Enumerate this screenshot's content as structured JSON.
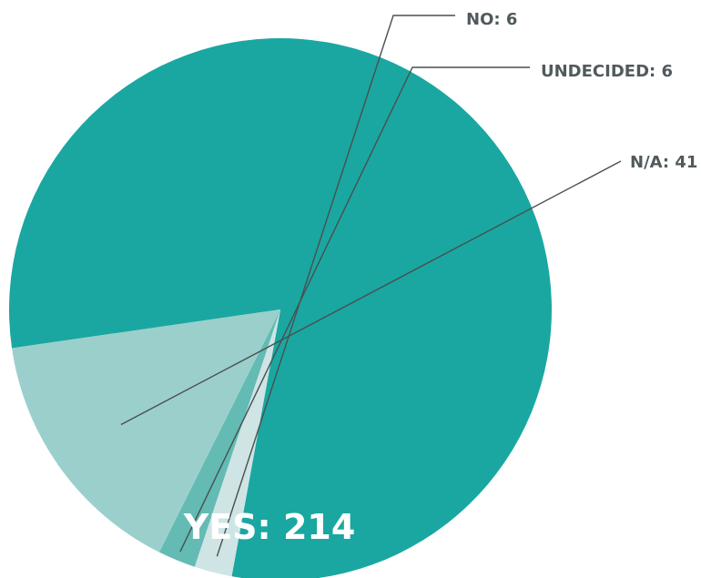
{
  "chart_data": {
    "type": "pie",
    "categories": [
      "YES",
      "NO",
      "UNDECIDED",
      "N/A"
    ],
    "values": [
      214,
      6,
      6,
      41
    ],
    "colors": [
      "#1aa7a1",
      "#cfe4e5",
      "#63bbb4",
      "#9bcfcc"
    ],
    "labels": [
      "YES: 214",
      "NO: 6",
      "UNDECIDED: 6",
      "N/A: 41"
    ],
    "title": "",
    "legend": "none"
  }
}
